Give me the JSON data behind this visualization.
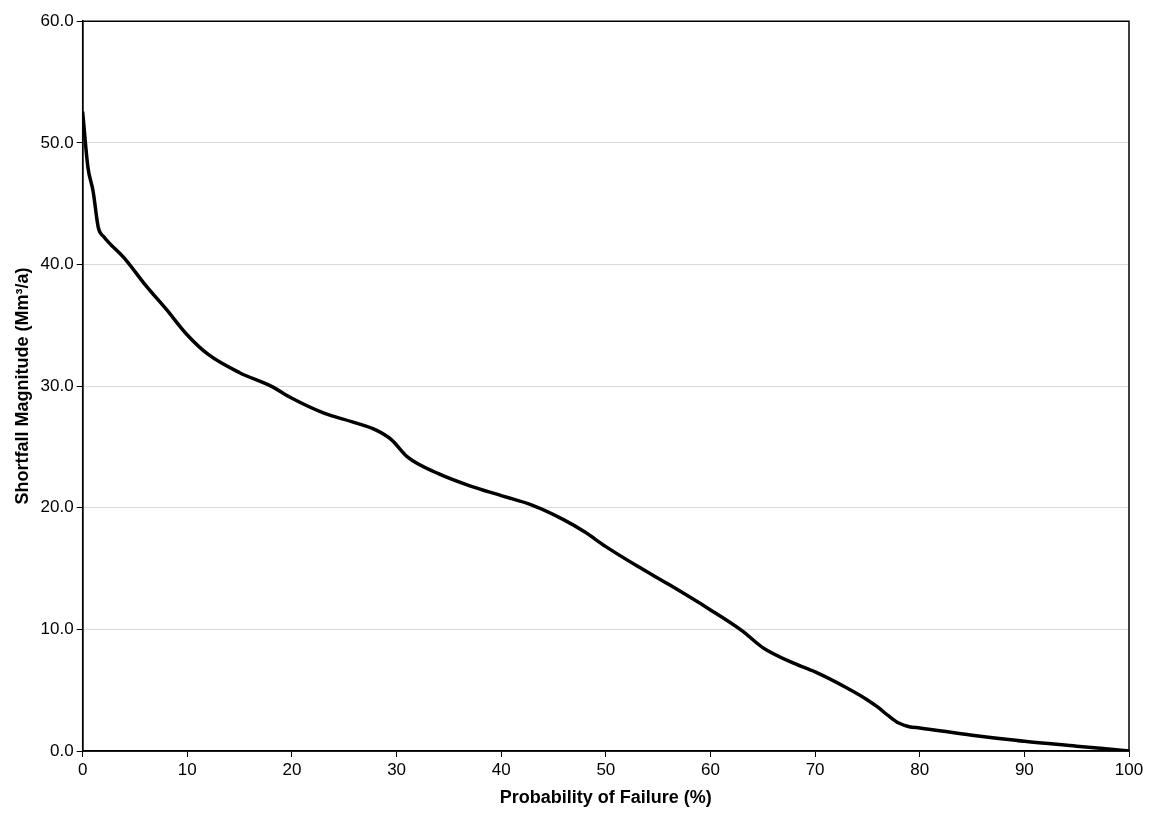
{
  "chart_data": {
    "type": "line",
    "xlabel": "Probability of Failure (%)",
    "ylabel": "Shortfall Magnitude (Mm³/a)",
    "series": [
      {
        "color": "#000000",
        "x": [
          0,
          0.5,
          1,
          1.5,
          2,
          4,
          6,
          8,
          10,
          12,
          15,
          18,
          20,
          23,
          26,
          28,
          29.5,
          31,
          34,
          37,
          40,
          43,
          46,
          48,
          50,
          53,
          56,
          60,
          63,
          65,
          68,
          70,
          73,
          75,
          76,
          77,
          78,
          79,
          80,
          85,
          90,
          95,
          100
        ],
        "values": [
          52.5,
          48,
          46,
          43,
          42.3,
          40.5,
          38.3,
          36.3,
          34.2,
          32.6,
          31.1,
          30,
          29,
          27.8,
          27,
          26.4,
          25.6,
          24.2,
          22.8,
          21.8,
          21,
          20.2,
          19,
          18,
          16.8,
          15.2,
          13.7,
          11.6,
          9.9,
          8.5,
          7.2,
          6.5,
          5.2,
          4.2,
          3.6,
          2.9,
          2.3,
          2,
          1.9,
          1.3,
          0.8,
          0.4,
          0
        ]
      }
    ],
    "xlim": [
      0,
      100
    ],
    "xticks": [
      0,
      10,
      20,
      30,
      40,
      50,
      60,
      70,
      80,
      90,
      100
    ],
    "ylim": [
      0,
      60
    ],
    "yticks": [
      {
        "value": 0,
        "label": "0.0"
      },
      {
        "value": 10,
        "label": "10.0"
      },
      {
        "value": 20,
        "label": "20.0"
      },
      {
        "value": 30,
        "label": "30.0"
      },
      {
        "value": 40,
        "label": "40.0"
      },
      {
        "value": 50,
        "label": "50.0"
      },
      {
        "value": 60,
        "label": "60.0"
      }
    ],
    "grid": "y",
    "legend": false,
    "marker": "none",
    "line_style": "solid"
  }
}
